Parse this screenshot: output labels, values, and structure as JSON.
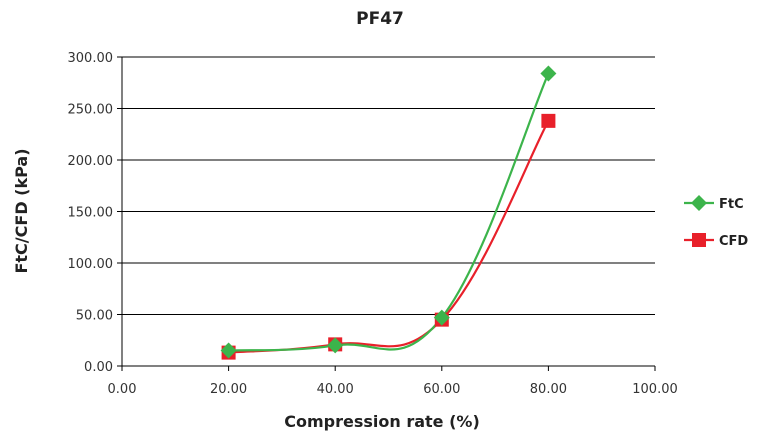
{
  "colors": {
    "ftc": "#3cb44b",
    "cfd": "#e8202a",
    "grid": "#000000"
  },
  "chart_data": {
    "type": "line",
    "title": "PF47",
    "xlabel": "Compression rate (%)",
    "ylabel": "FtC/CFD (kPa)",
    "xlim": [
      0,
      100
    ],
    "ylim": [
      0,
      300
    ],
    "x_ticks": [
      "0.00",
      "20.00",
      "40.00",
      "60.00",
      "80.00",
      "100.00"
    ],
    "y_ticks": [
      "0.00",
      "50.00",
      "100.00",
      "150.00",
      "200.00",
      "250.00",
      "300.00"
    ],
    "grid": "horizontal",
    "legend_position": "right",
    "series": [
      {
        "name": "FtC",
        "marker": "diamond",
        "x": [
          20,
          40,
          60,
          80
        ],
        "y": [
          15,
          20,
          47,
          284
        ]
      },
      {
        "name": "CFD",
        "marker": "square",
        "x": [
          20,
          40,
          60,
          80
        ],
        "y": [
          13,
          21,
          45,
          238
        ]
      }
    ]
  }
}
